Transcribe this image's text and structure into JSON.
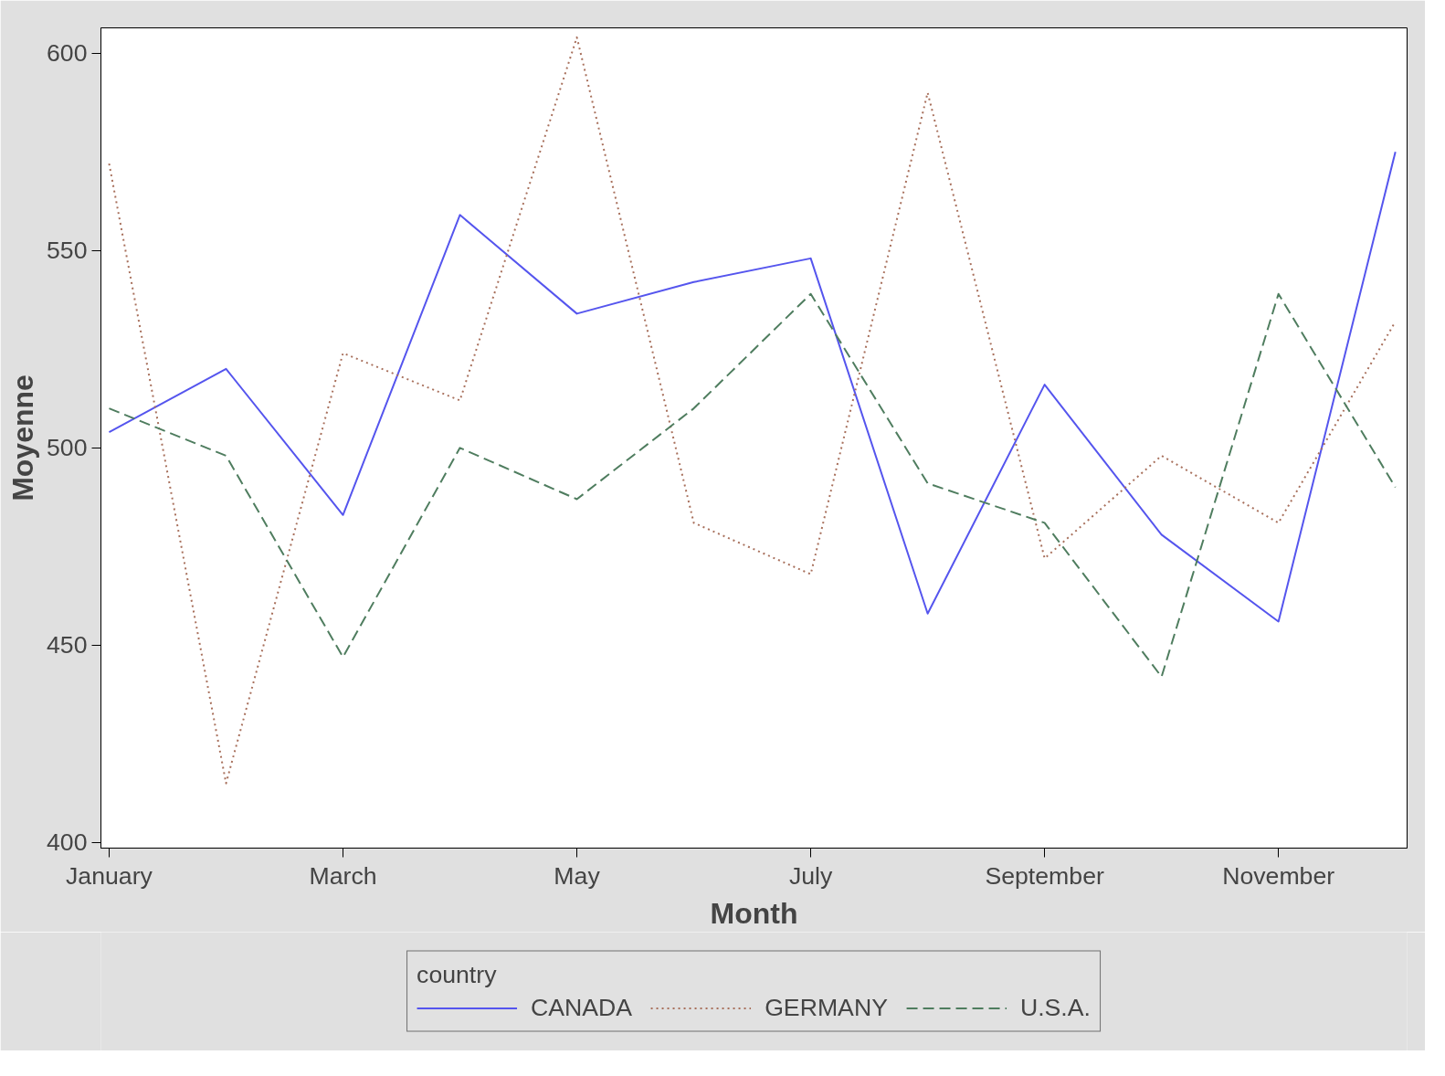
{
  "chart_data": {
    "type": "line",
    "xlabel": "Month",
    "ylabel": "Moyenne",
    "legend_title": "country",
    "categories": [
      "January",
      null,
      "March",
      null,
      "May",
      null,
      "July",
      null,
      "September",
      null,
      "November",
      null
    ],
    "series": [
      {
        "name": "CANADA",
        "color": "#5555ee",
        "line_style": "solid",
        "values": [
          504,
          520,
          483,
          559,
          534,
          542,
          548,
          458,
          516,
          478,
          456,
          575
        ]
      },
      {
        "name": "GERMANY",
        "color": "#a8705c",
        "line_style": "dotted",
        "values": [
          572,
          415,
          524,
          512,
          604,
          481,
          468,
          590,
          472,
          498,
          481,
          532
        ]
      },
      {
        "name": "U.S.A.",
        "color": "#4f7d5f",
        "line_style": "dashed",
        "values": [
          510,
          498,
          447,
          500,
          487,
          510,
          539,
          491,
          481,
          442,
          539,
          490
        ]
      }
    ],
    "ylim": [
      398.6,
      606.4
    ],
    "yticks": [
      400,
      450,
      500,
      550,
      600
    ],
    "grid": false,
    "legend": "bottom",
    "marker": "none"
  }
}
